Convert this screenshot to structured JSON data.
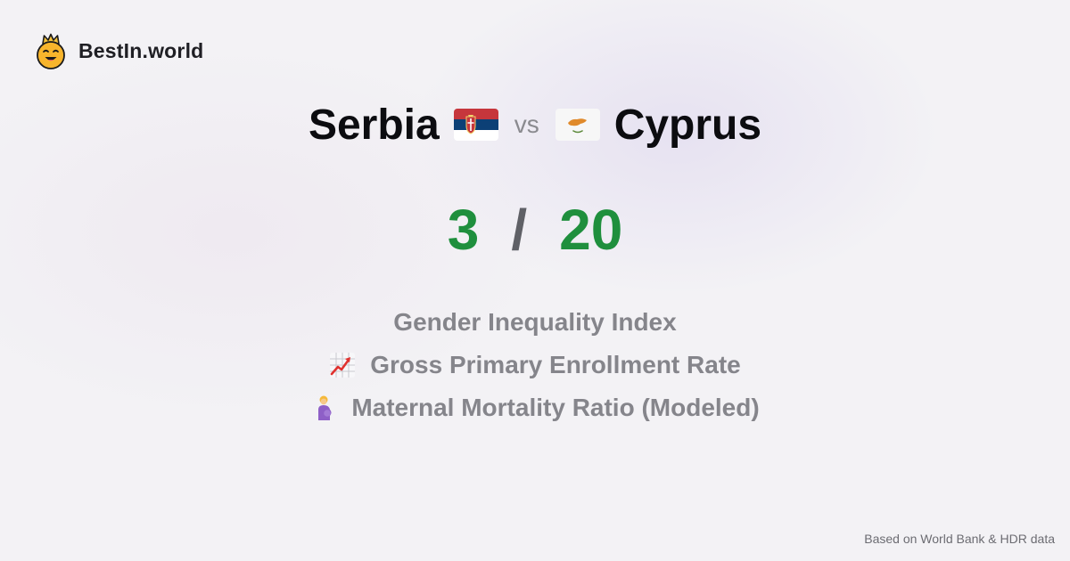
{
  "brand": {
    "name": "BestIn.world",
    "logo_icon": "crowned-smiley-icon"
  },
  "comparison": {
    "left": {
      "country": "Serbia",
      "flag_icon": "serbia-flag-icon",
      "score": "3"
    },
    "vs_label": "vs",
    "right": {
      "country": "Cyprus",
      "flag_icon": "cyprus-flag-icon",
      "score": "20"
    },
    "separator": "/"
  },
  "metrics": [
    {
      "label": "Gender Inequality Index",
      "icon": ""
    },
    {
      "label": "Gross Primary Enrollment Rate",
      "icon": "chart-increasing-icon"
    },
    {
      "label": "Maternal Mortality Ratio (Modeled)",
      "icon": "pregnant-woman-icon"
    }
  ],
  "footer": {
    "source": "Based on World Bank & HDR data"
  },
  "colors": {
    "score": "#1f8f3d",
    "metric_text": "#85858b",
    "title_text": "#0c0c10"
  }
}
